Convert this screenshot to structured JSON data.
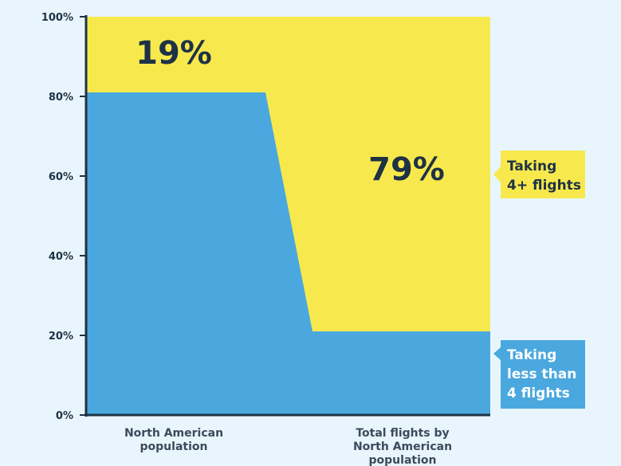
{
  "chart_data": {
    "type": "area",
    "categories": [
      "North American population",
      "Total flights by North American population"
    ],
    "categories_wrapped": [
      [
        "North American",
        "population"
      ],
      [
        "Total flights by",
        "North American",
        "population"
      ]
    ],
    "series": [
      {
        "key": "frequent",
        "values": [
          19,
          79
        ],
        "color": "#f7e94d"
      },
      {
        "key": "infrequent",
        "values": [
          81,
          21
        ],
        "color": "#4aa8df"
      }
    ],
    "value_labels": [
      "19%",
      "79%"
    ],
    "legend": {
      "frequent": [
        "Taking",
        "4+ flights"
      ],
      "infrequent": [
        "Taking",
        "less than",
        "4 flights"
      ]
    },
    "y_ticks": [
      "0%",
      "20%",
      "40%",
      "60%",
      "80%",
      "100%"
    ],
    "ylim": [
      0,
      100
    ],
    "stacked": true,
    "normalized": true,
    "grid": false
  }
}
